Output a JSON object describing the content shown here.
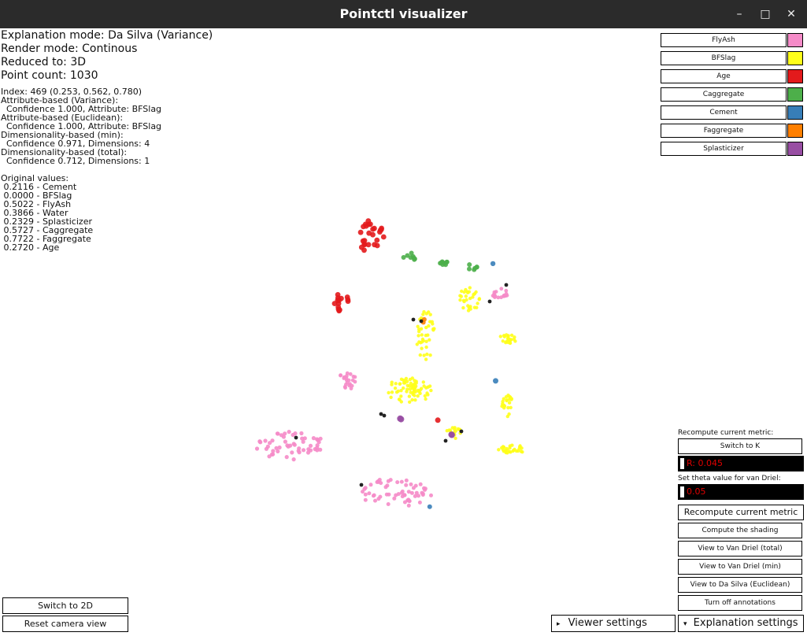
{
  "window": {
    "title": "Pointctl visualizer",
    "minimize": "–",
    "maximize": "□",
    "close": "✕"
  },
  "info": {
    "explanation_mode": "Explanation mode: Da Silva (Variance)",
    "render_mode": "Render mode: Continous",
    "reduced_to": "Reduced to: 3D",
    "point_count": "Point count: 1030",
    "details": [
      "Index: 469 (0.253, 0.562, 0.780)",
      "Attribute-based (Variance):",
      "  Confidence 1.000, Attribute: BFSlag",
      "Attribute-based (Euclidean):",
      "  Confidence 1.000, Attribute: BFSlag",
      "Dimensionality-based (min):",
      "  Confidence 0.971, Dimensions: 4",
      "Dimensionality-based (total):",
      "  Confidence 0.712, Dimensions: 1"
    ],
    "original_values_title": "Original values:",
    "original_values": [
      " 0.2116 - Cement",
      " 0.0000 - BFSlag",
      " 0.5022 - FlyAsh",
      " 0.3866 - Water",
      " 0.2329 - Splasticizer",
      " 0.5727 - Caggregate",
      " 0.7722 - Faggregate",
      " 0.2720 - Age"
    ]
  },
  "legend": [
    {
      "label": "FlyAsh",
      "color": "#f58bc8"
    },
    {
      "label": "BFSlag",
      "color": "#ffff1a"
    },
    {
      "label": "Age",
      "color": "#e31a1c"
    },
    {
      "label": "Caggregate",
      "color": "#4daf4a"
    },
    {
      "label": "Cement",
      "color": "#377eb8"
    },
    {
      "label": "Faggregate",
      "color": "#ff7f00"
    },
    {
      "label": "Splasticizer",
      "color": "#984ea3"
    }
  ],
  "right_panel": {
    "recompute_label": "Recompute current metric:",
    "switch_k": "Switch to K",
    "r_value": "R: 0.045",
    "theta_label": "Set theta value for van Driel:",
    "theta_value": "0.05",
    "recompute_btn": "Recompute current metric",
    "compute_shading": "Compute the shading",
    "view_vd_total": "View to Van Driel (total)",
    "view_vd_min": "View to Van Driel (min)",
    "view_ds_euclid": "View to Da Silva (Euclidean)",
    "turn_off_annotations": "Turn off annotations"
  },
  "bottom": {
    "switch_2d": "Switch to 2D",
    "reset_camera": "Reset camera view",
    "viewer_settings": "Viewer settings",
    "explanation_settings": "Explanation settings",
    "viewer_arrow": "▸",
    "explanation_arrow": "▾"
  }
}
